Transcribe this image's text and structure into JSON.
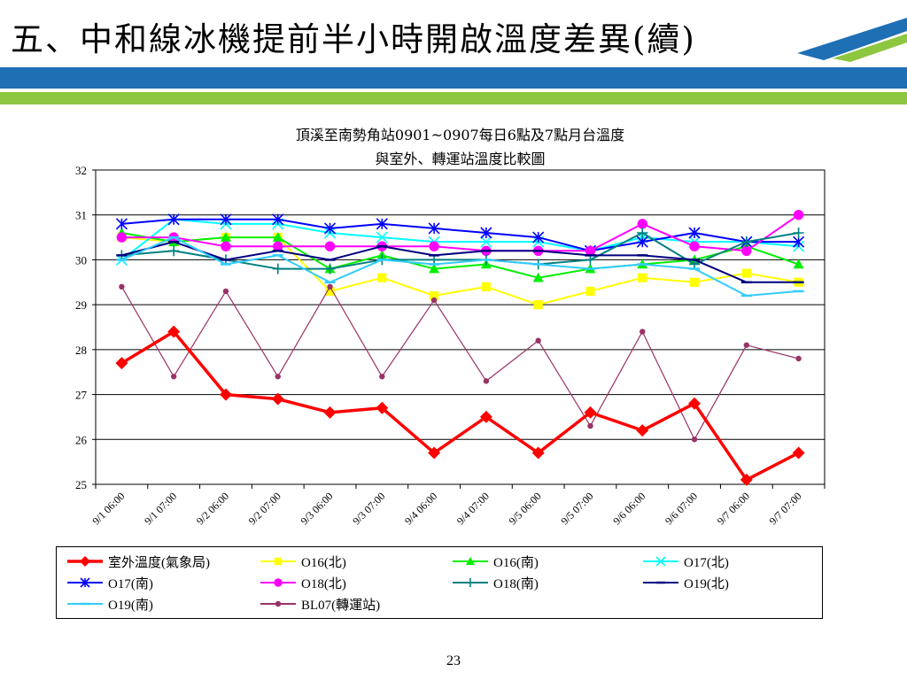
{
  "slide": {
    "title": "五、中和線冰機提前半小時開啟溫度差異(續)",
    "page_number": "23",
    "colors": {
      "band_blue": "#1f6fb5",
      "band_green": "#8dc63f"
    }
  },
  "chart_data": {
    "type": "line",
    "title_line1": "頂溪至南勢角站0901~0907每日6點及7點月台溫度",
    "title_line2": "與室外、轉運站溫度比較圖",
    "categories": [
      "9/1 06:00",
      "9/1 07:00",
      "9/2 06:00",
      "9/2 07:00",
      "9/3 06:00",
      "9/3 07:00",
      "9/4 06:00",
      "9/4 07:00",
      "9/5 06:00",
      "9/5 07:00",
      "9/6 06:00",
      "9/6 07:00",
      "9/7 06:00",
      "9/7 07:00"
    ],
    "ylim": [
      25,
      32
    ],
    "yticks": [
      "25",
      "26",
      "27",
      "28",
      "29",
      "30",
      "31",
      "32"
    ],
    "grid": true,
    "legend_position": "bottom",
    "series": [
      {
        "name": "室外溫度(氣象局)",
        "color": "#ff0000",
        "marker": "diamond",
        "width": 3.5,
        "values": [
          27.7,
          28.4,
          27.0,
          26.9,
          26.6,
          26.7,
          25.7,
          26.5,
          25.7,
          26.6,
          26.2,
          26.8,
          25.1,
          25.7
        ]
      },
      {
        "name": "O16(北)",
        "color": "#ffff00",
        "marker": "square",
        "width": 2,
        "values": [
          30.5,
          30.4,
          30.5,
          30.5,
          29.3,
          29.6,
          29.2,
          29.4,
          29.0,
          29.3,
          29.6,
          29.5,
          29.7,
          29.5
        ]
      },
      {
        "name": "O16(南)",
        "color": "#00ee00",
        "marker": "triangle",
        "width": 2,
        "values": [
          30.6,
          30.4,
          30.5,
          30.5,
          29.8,
          30.1,
          29.8,
          29.9,
          29.6,
          29.8,
          29.9,
          30.0,
          30.3,
          29.9
        ]
      },
      {
        "name": "O17(北)",
        "color": "#00ffff",
        "marker": "x",
        "width": 2,
        "values": [
          30.0,
          30.9,
          30.8,
          30.8,
          30.6,
          30.5,
          30.4,
          30.4,
          30.4,
          30.2,
          30.5,
          30.4,
          30.4,
          30.3
        ]
      },
      {
        "name": "O17(南)",
        "color": "#0000ff",
        "marker": "asterisk",
        "width": 2,
        "values": [
          30.8,
          30.9,
          30.9,
          30.9,
          30.7,
          30.8,
          30.7,
          30.6,
          30.5,
          30.2,
          30.4,
          30.6,
          30.4,
          30.4
        ]
      },
      {
        "name": "O18(北)",
        "color": "#ff00ff",
        "marker": "circle",
        "width": 2,
        "values": [
          30.5,
          30.5,
          30.3,
          30.3,
          30.3,
          30.3,
          30.3,
          30.2,
          30.2,
          30.2,
          30.8,
          30.3,
          30.2,
          31.0
        ]
      },
      {
        "name": "O18(南)",
        "color": "#008080",
        "marker": "plus",
        "width": 2,
        "values": [
          30.1,
          30.2,
          30.0,
          29.8,
          29.8,
          30.0,
          30.0,
          30.0,
          29.9,
          30.0,
          30.6,
          29.9,
          30.4,
          30.6
        ]
      },
      {
        "name": "O19(北)",
        "color": "#000080",
        "marker": "dash",
        "width": 2,
        "values": [
          30.1,
          30.4,
          30.0,
          30.2,
          30.0,
          30.3,
          30.1,
          30.2,
          30.2,
          30.1,
          30.1,
          30.0,
          29.5,
          29.5
        ]
      },
      {
        "name": "O19(南)",
        "color": "#33ccff",
        "marker": "dash",
        "width": 2,
        "values": [
          30.0,
          30.5,
          29.9,
          30.1,
          29.5,
          30.0,
          29.9,
          30.0,
          29.9,
          29.8,
          29.9,
          29.8,
          29.2,
          29.3
        ]
      },
      {
        "name": "BL07(轉運站)",
        "color": "#993366",
        "marker": "dot",
        "width": 1.2,
        "values": [
          29.4,
          27.4,
          29.3,
          27.4,
          29.4,
          27.4,
          29.1,
          27.3,
          28.2,
          26.3,
          28.4,
          26.0,
          28.1,
          27.8
        ]
      }
    ]
  }
}
